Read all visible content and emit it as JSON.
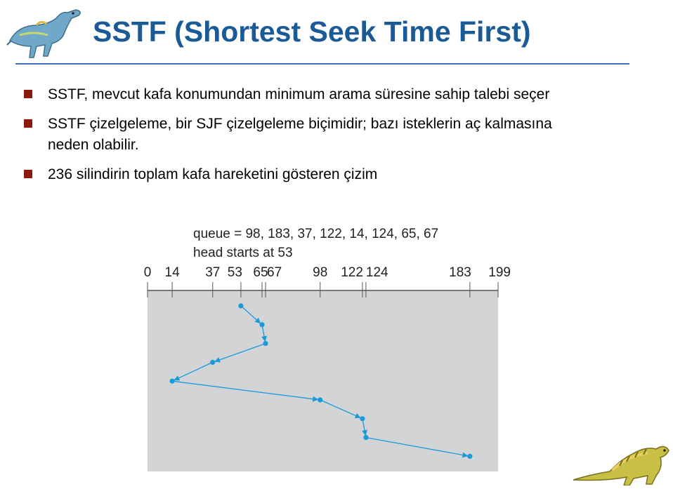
{
  "slide": {
    "title": "SSTF (Shortest Seek Time First)",
    "bullets": [
      "SSTF, mevcut kafa konumundan minimum arama süresine sahip talebi seçer",
      "SSTF çizelgeleme, bir SJF çizelgeleme biçimidir; bazı isteklerin aç kalmasına neden olabilir.",
      "236 silindirin toplam kafa hareketini gösteren çizim"
    ]
  },
  "chart_data": {
    "type": "line",
    "queue_label": "queue = 98, 183, 37, 122, 14, 124, 65, 67",
    "head_label": "head starts at 53",
    "axis_ticks": [
      0,
      14,
      37,
      53,
      65,
      67,
      98,
      122,
      124,
      183,
      199
    ],
    "axis_range": [
      0,
      199
    ],
    "path": [
      53,
      65,
      67,
      37,
      14,
      98,
      122,
      124,
      183
    ],
    "colors": {
      "plot_bg": "#d3d4d6",
      "line": "#1a9ad8",
      "axis": "#555555"
    }
  }
}
